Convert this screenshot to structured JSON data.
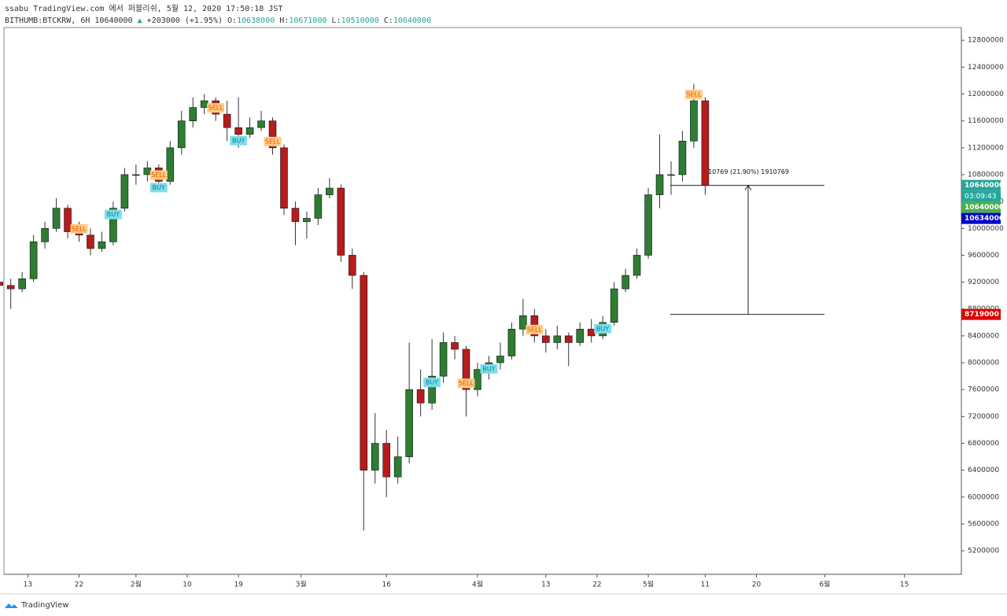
{
  "header": {
    "publisher": "ssabu TradingView.com 에서 퍼블리쉬, 5월 12, 2020 17:50:18 JST",
    "symbol": "BITHUMB:BTCKRW, 6H",
    "last": 10640000,
    "arrow": "▲",
    "change": "+203000 (+1.95%)",
    "ohlc": [
      {
        "label": "O:",
        "value": 10638000
      },
      {
        "label": "H:",
        "value": 10671000
      },
      {
        "label": "L:",
        "value": 10510000
      },
      {
        "label": "C:",
        "value": 10640000
      }
    ]
  },
  "footer": {
    "brand": "TradingView"
  },
  "chart_data": {
    "type": "candlestick",
    "up_color": "#2e7d32",
    "down_color": "#b71c1c",
    "wick_color": "#333333",
    "xlim": [
      0.4,
      84.5
    ],
    "xticks": [
      {
        "value": 2.5,
        "label": "13"
      },
      {
        "value": 7,
        "label": "22"
      },
      {
        "value": 12,
        "label": "2월"
      },
      {
        "value": 16.5,
        "label": "10"
      },
      {
        "value": 21,
        "label": "19"
      },
      {
        "value": 26.5,
        "label": "3월"
      },
      {
        "value": 34,
        "label": "16"
      },
      {
        "value": 42,
        "label": "4월"
      },
      {
        "value": 48,
        "label": "13"
      },
      {
        "value": 52.5,
        "label": "22"
      },
      {
        "value": 57,
        "label": "5월"
      },
      {
        "value": 62,
        "label": "11"
      },
      {
        "value": 66.5,
        "label": "20"
      },
      {
        "value": 72.5,
        "label": "6월"
      },
      {
        "value": 79.5,
        "label": "15"
      }
    ],
    "ylim": [
      4850000,
      12990000
    ],
    "yticks": [
      5200000,
      5600000,
      6000000,
      6400000,
      6800000,
      7200000,
      7600000,
      8000000,
      8400000,
      8800000,
      9200000,
      9600000,
      10000000,
      10400000,
      10800000,
      11200000,
      11600000,
      12000000,
      12400000,
      12800000
    ],
    "open": [
      9200000,
      9150000,
      9100000,
      9250000,
      9800000,
      10000000,
      10300000,
      9950000,
      9900000,
      9700000,
      9800000,
      10300000,
      10800000,
      10800000,
      10900000,
      10700000,
      11200000,
      11600000,
      11800000,
      11900000,
      11700000,
      11500000,
      11400000,
      11500000,
      11600000,
      11200000,
      10300000,
      10100000,
      10150000,
      10500000,
      10600000,
      9600000,
      9300000,
      6400000,
      6800000,
      6300000,
      6600000,
      7600000,
      7400000,
      7800000,
      8300000,
      8200000,
      7600000,
      7900000,
      8000000,
      8100000,
      8500000,
      8700000,
      8400000,
      8300000,
      8400000,
      8300000,
      8500000,
      8400000,
      8600000,
      9100000,
      9300000,
      9600000,
      10500000,
      10800000,
      10800000,
      11300000,
      11900000
    ],
    "high": [
      9300000,
      9250000,
      9350000,
      9900000,
      10100000,
      10450000,
      10350000,
      10100000,
      10000000,
      9950000,
      10400000,
      10900000,
      10950000,
      11000000,
      10950000,
      11300000,
      11750000,
      11950000,
      12000000,
      11950000,
      11900000,
      11950000,
      11650000,
      11750000,
      11650000,
      11250000,
      10400000,
      10250000,
      10600000,
      10750000,
      10650000,
      9700000,
      9350000,
      7250000,
      7000000,
      6900000,
      8300000,
      7900000,
      8350000,
      8450000,
      8400000,
      8250000,
      8000000,
      8100000,
      8300000,
      8600000,
      8950000,
      8800000,
      8500000,
      8550000,
      8450000,
      8600000,
      8650000,
      8700000,
      9200000,
      9400000,
      9700000,
      10600000,
      11400000,
      11000000,
      11450000,
      12150000,
      11950000
    ],
    "low": [
      9050000,
      8800000,
      9050000,
      9200000,
      9700000,
      9950000,
      9850000,
      9800000,
      9600000,
      9650000,
      9750000,
      10250000,
      10650000,
      10700000,
      10550000,
      10650000,
      11100000,
      11500000,
      11700000,
      11600000,
      11300000,
      11200000,
      11350000,
      11450000,
      11100000,
      10200000,
      9750000,
      9850000,
      10050000,
      10450000,
      9500000,
      9100000,
      5500000,
      6200000,
      6000000,
      6200000,
      6500000,
      7200000,
      7300000,
      7700000,
      8050000,
      7200000,
      7500000,
      7750000,
      7900000,
      8050000,
      8400000,
      8300000,
      8150000,
      8200000,
      7950000,
      8250000,
      8300000,
      8350000,
      8550000,
      9050000,
      9250000,
      9550000,
      10300000,
      10500000,
      10700000,
      11200000,
      10500000
    ],
    "close": [
      9150000,
      9100000,
      9250000,
      9800000,
      10000000,
      10300000,
      9950000,
      9900000,
      9700000,
      9800000,
      10300000,
      10800000,
      10800000,
      10900000,
      10700000,
      11200000,
      11600000,
      11800000,
      11900000,
      11700000,
      11500000,
      11400000,
      11500000,
      11600000,
      11200000,
      10300000,
      10100000,
      10150000,
      10500000,
      10600000,
      9600000,
      9300000,
      6400000,
      6800000,
      6300000,
      6600000,
      7600000,
      7400000,
      7800000,
      8300000,
      8200000,
      7600000,
      7900000,
      8000000,
      8100000,
      8500000,
      8700000,
      8400000,
      8300000,
      8400000,
      8300000,
      8500000,
      8400000,
      8600000,
      9100000,
      9300000,
      9600000,
      10500000,
      10800000,
      10800000,
      11300000,
      11900000,
      10640000
    ],
    "signals": [
      {
        "label": "SELL",
        "candle": 7
      },
      {
        "label": "BUY",
        "candle": 10
      },
      {
        "label": "SELL",
        "candle": 14
      },
      {
        "label": "BUY",
        "candle": 14
      },
      {
        "label": "SELL",
        "candle": 19
      },
      {
        "label": "BUY",
        "candle": 21
      },
      {
        "label": "SELL",
        "candle": 24
      },
      {
        "label": "BUY",
        "candle": 38
      },
      {
        "label": "SELL",
        "candle": 41
      },
      {
        "label": "BUY",
        "candle": 43
      },
      {
        "label": "SELL",
        "candle": 47
      },
      {
        "label": "BUY",
        "candle": 53
      },
      {
        "label": "SELL",
        "candle": 61
      }
    ],
    "measure": {
      "text": "10769 (21.90%) 1910769",
      "levels": [
        10640000,
        8719000
      ]
    },
    "price_tags": [
      {
        "value": 10640000,
        "color": "#26a69a"
      },
      {
        "value": 10640000,
        "color": "#4caf50"
      },
      {
        "value": 10634000,
        "color": "#0000cc"
      },
      {
        "value": 8719000,
        "color": "#e00000"
      }
    ],
    "countdown": "03:09:43"
  }
}
